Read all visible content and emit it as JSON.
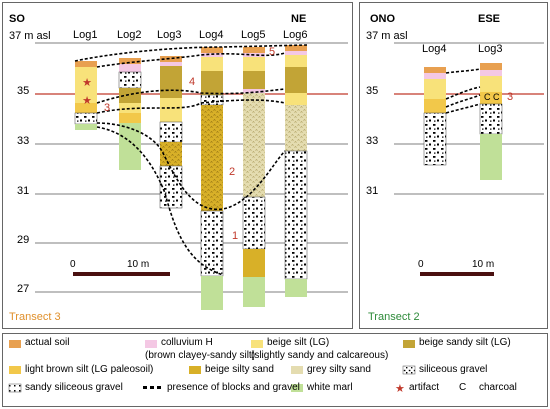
{
  "transect3": {
    "label": "Transect 3",
    "dir_left": "SO",
    "dir_right": "NE",
    "elevation_label": "37 m asl",
    "logs": [
      "Log1",
      "Log2",
      "Log3",
      "Log4",
      "Log5",
      "Log6"
    ],
    "y_ticks": [
      "35",
      "33",
      "31",
      "29",
      "27"
    ],
    "scale_start": "0",
    "scale_end": "10 m",
    "units": [
      "1",
      "2",
      "3",
      "4",
      "5"
    ]
  },
  "transect2": {
    "label": "Transect 2",
    "dir_left": "ONO",
    "dir_right": "ESE",
    "elevation_label": "37 m asl",
    "logs": [
      "Log4",
      "Log3"
    ],
    "y_ticks": [
      "35",
      "33",
      "31"
    ],
    "scale_start": "0",
    "scale_end": "10 m",
    "units": [
      "3"
    ],
    "charcoal_marks": "C C"
  },
  "legend": {
    "items": [
      {
        "label": "actual soil"
      },
      {
        "label": "colluvium H",
        "sub": "(brown clayey-sandy silt)"
      },
      {
        "label": "beige silt (LG)",
        "sub": "(slightly sandy and calcareous)"
      },
      {
        "label": "beige sandy silt (LG)"
      },
      {
        "label": "light brown silt (LG paleosoil)"
      },
      {
        "label": "beige silty sand"
      },
      {
        "label": "grey silty sand"
      },
      {
        "label": "siliceous gravel"
      },
      {
        "label": "sandy siliceous gravel"
      },
      {
        "label": "presence of blocks and gravel"
      },
      {
        "label": "white marl"
      },
      {
        "label": "artifact"
      },
      {
        "label": "charcoal",
        "symbol": "C"
      }
    ]
  },
  "colors": {
    "actual_soil": "#e8a050",
    "colluvium": "#f4c8e4",
    "beige_silt": "#f8e27a",
    "beige_sandy_silt": "#c2a436",
    "light_brown_silt": "#f2c84a",
    "beige_silty_sand": "#d8b028",
    "grey_silty_sand": "#e4dcb0",
    "white_marl": "#c0e098",
    "unit_number": "#c0392b",
    "red_line": "#c0392b",
    "transect_label": "#e0902c"
  }
}
